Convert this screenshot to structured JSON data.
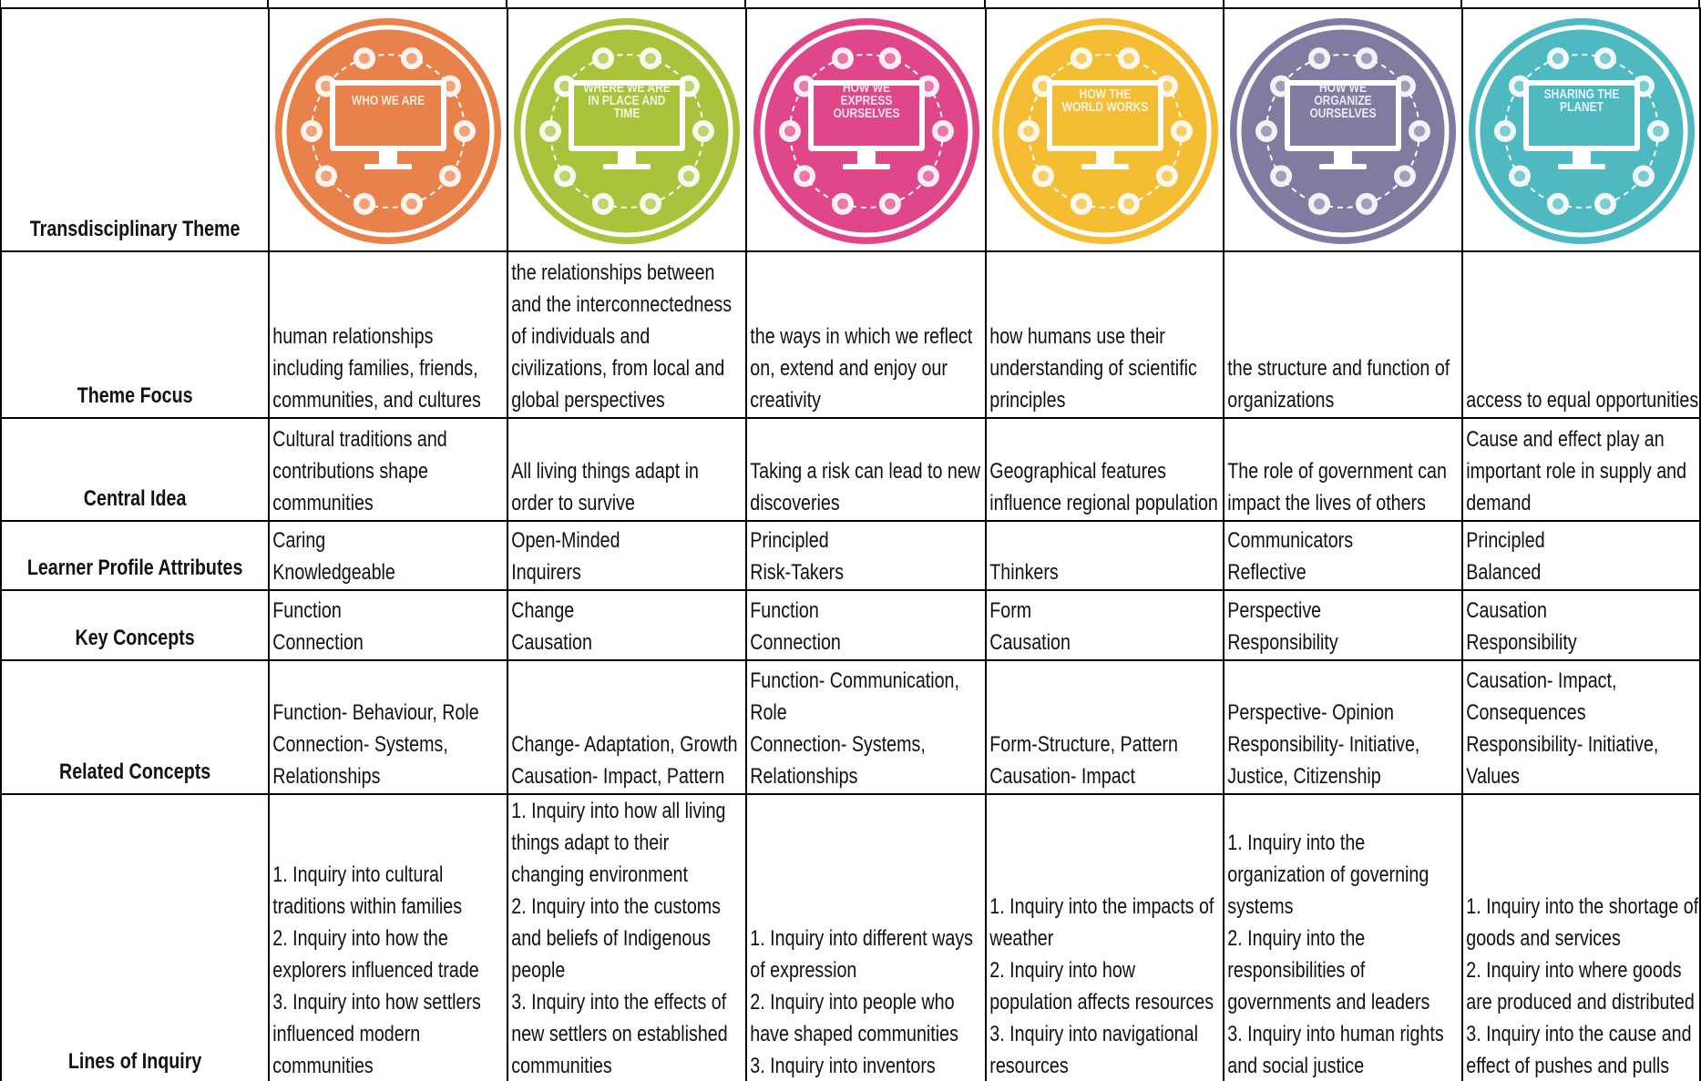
{
  "table": {
    "rows": [
      {
        "header": "Transdisciplinary Theme",
        "cells": [
          [
            "WHO WE ARE"
          ],
          [
            "WHERE WE ARE IN PLACE AND TIME"
          ],
          [
            "HOW WE EXPRESS OURSELVES"
          ],
          [
            "HOW THE WORLD WORKS"
          ],
          [
            "HOW WE ORGANIZE OURSELVES"
          ],
          [
            "SHARING THE PLANET"
          ]
        ]
      },
      {
        "header": "Theme Focus",
        "cells": [
          [
            "human relationships including families, friends, communities, and cultures"
          ],
          [
            "the relationships between and the interconnectedness of individuals and civilizations, from local and global perspectives"
          ],
          [
            "the ways in which we reflect on, extend and enjoy our creativity"
          ],
          [
            "how humans use their understanding of scientific principles"
          ],
          [
            "the structure and function of organizations"
          ],
          [
            "access to equal opportunities"
          ]
        ]
      },
      {
        "header": "Central Idea",
        "cells": [
          [
            "Cultural traditions and contributions shape communities"
          ],
          [
            "All living things adapt in order to survive"
          ],
          [
            "Taking a risk can lead to new discoveries"
          ],
          [
            "Geographical features influence regional population"
          ],
          [
            "The role of government can impact the lives of others"
          ],
          [
            "Cause and effect play an important role in supply and demand"
          ]
        ]
      },
      {
        "header": "Learner Profile Attributes",
        "cells": [
          [
            "Caring",
            "Knowledgeable"
          ],
          [
            "Open-Minded",
            "Inquirers"
          ],
          [
            "Principled",
            "Risk-Takers"
          ],
          [
            "Thinkers"
          ],
          [
            "Communicators",
            "Reflective"
          ],
          [
            "Principled",
            "Balanced"
          ]
        ]
      },
      {
        "header": "Key Concepts",
        "cells": [
          [
            "Function",
            "Connection"
          ],
          [
            "Change",
            "Causation"
          ],
          [
            "Function",
            "Connection"
          ],
          [
            "Form",
            "Causation"
          ],
          [
            "Perspective",
            "Responsibility"
          ],
          [
            "Causation",
            "Responsibility"
          ]
        ]
      },
      {
        "header": "Related Concepts",
        "cells": [
          [
            "Function- Behaviour, Role",
            "Connection- Systems, Relationships"
          ],
          [
            "Change- Adaptation, Growth",
            "Causation- Impact, Pattern"
          ],
          [
            "Function- Communication, Role",
            "Connection- Systems, Relationships"
          ],
          [
            "Form-Structure, Pattern",
            "Causation- Impact"
          ],
          [
            "Perspective- Opinion",
            "Responsibility- Initiative, Justice, Citizenship"
          ],
          [
            "Causation- Impact, Consequences",
            "Responsibility- Initiative, Values"
          ]
        ]
      },
      {
        "header": "Lines of Inquiry",
        "cells": [
          [
            "1. Inquiry into cultural traditions within families",
            "2. Inquiry into how the explorers influenced trade",
            "3. Inquiry into how settlers influenced modern communities"
          ],
          [
            "1. Inquiry into how all living things adapt to their changing environment",
            "2. Inquiry into the customs and beliefs of Indigenous people",
            "3. Inquiry into the effects of new settlers on established communities"
          ],
          [
            "1. Inquiry into different ways of expression",
            "2. Inquiry into people who have shaped communities",
            "3. Inquiry into inventors"
          ],
          [
            "1. Inquiry into the impacts of weather",
            "2. Inquiry into how population affects resources",
            "3. Inquiry into navigational resources"
          ],
          [
            "1. Inquiry into the organization of governing systems",
            "2. Inquiry into the responsibilities of governments and leaders",
            "3. Inquiry into human rights and social justice"
          ],
          [
            "1. Inquiry into the shortage of goods and services",
            "2. Inquiry into where goods are produced and distributed",
            "3. Inquiry into the cause and effect of pushes and pulls"
          ]
        ]
      }
    ]
  }
}
